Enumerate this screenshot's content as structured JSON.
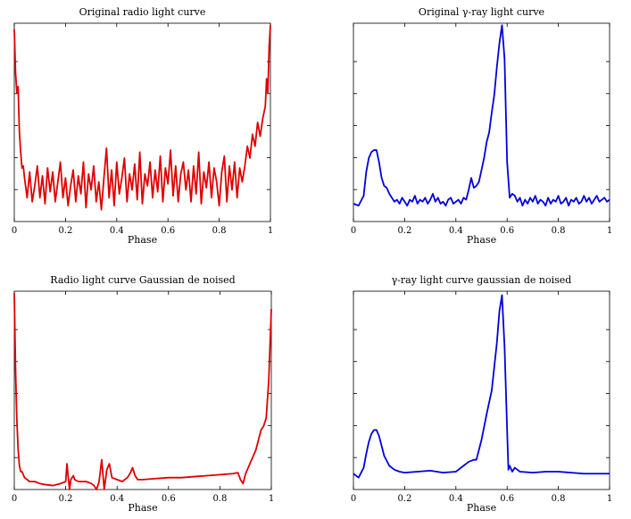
{
  "chart_data": [
    {
      "type": "line",
      "title": "Original radio light curve",
      "xlabel": "Phase",
      "ylabel": "",
      "xlim": [
        0,
        1
      ],
      "ylim": [
        0,
        1
      ],
      "yticks_labeled": false,
      "x_ticks": [
        "0",
        "0.2",
        "0.4",
        "0.6",
        "0.8",
        "1"
      ],
      "color": "#e00000",
      "series": [
        {
          "x": [
            0,
            0.005,
            0.01,
            0.015,
            0.02,
            0.025,
            0.03,
            0.035,
            0.04,
            0.05,
            0.06,
            0.07,
            0.08,
            0.09,
            0.1,
            0.11,
            0.12,
            0.13,
            0.14,
            0.15,
            0.16,
            0.17,
            0.18,
            0.19,
            0.2,
            0.21,
            0.22,
            0.23,
            0.24,
            0.25,
            0.26,
            0.27,
            0.28,
            0.29,
            0.3,
            0.31,
            0.32,
            0.33,
            0.34,
            0.35,
            0.36,
            0.37,
            0.38,
            0.39,
            0.4,
            0.41,
            0.42,
            0.43,
            0.44,
            0.45,
            0.46,
            0.47,
            0.48,
            0.49,
            0.5,
            0.51,
            0.52,
            0.53,
            0.54,
            0.55,
            0.56,
            0.57,
            0.58,
            0.59,
            0.6,
            0.61,
            0.62,
            0.63,
            0.64,
            0.65,
            0.66,
            0.67,
            0.68,
            0.69,
            0.7,
            0.71,
            0.72,
            0.73,
            0.74,
            0.75,
            0.76,
            0.77,
            0.78,
            0.79,
            0.8,
            0.81,
            0.82,
            0.83,
            0.84,
            0.85,
            0.86,
            0.87,
            0.88,
            0.89,
            0.9,
            0.91,
            0.92,
            0.93,
            0.94,
            0.95,
            0.96,
            0.97,
            0.98,
            0.985,
            0.99,
            0.995,
            1
          ],
          "y": [
            0.97,
            0.75,
            0.65,
            0.68,
            0.45,
            0.35,
            0.27,
            0.28,
            0.22,
            0.12,
            0.25,
            0.1,
            0.18,
            0.28,
            0.12,
            0.23,
            0.09,
            0.27,
            0.15,
            0.25,
            0.1,
            0.2,
            0.3,
            0.12,
            0.22,
            0.08,
            0.18,
            0.26,
            0.1,
            0.23,
            0.14,
            0.3,
            0.07,
            0.24,
            0.16,
            0.28,
            0.1,
            0.2,
            0.06,
            0.22,
            0.37,
            0.12,
            0.26,
            0.08,
            0.3,
            0.14,
            0.22,
            0.32,
            0.1,
            0.24,
            0.16,
            0.29,
            0.11,
            0.35,
            0.09,
            0.24,
            0.18,
            0.3,
            0.12,
            0.26,
            0.15,
            0.33,
            0.1,
            0.27,
            0.19,
            0.36,
            0.13,
            0.28,
            0.1,
            0.24,
            0.3,
            0.16,
            0.26,
            0.1,
            0.28,
            0.14,
            0.35,
            0.09,
            0.25,
            0.17,
            0.3,
            0.12,
            0.27,
            0.2,
            0.08,
            0.25,
            0.33,
            0.1,
            0.28,
            0.16,
            0.3,
            0.12,
            0.27,
            0.2,
            0.28,
            0.38,
            0.32,
            0.44,
            0.38,
            0.5,
            0.43,
            0.52,
            0.58,
            0.72,
            0.65,
            0.88,
            0.99
          ]
        }
      ]
    },
    {
      "type": "line",
      "title": "Original γ-ray light curve",
      "xlabel": "Phase",
      "ylabel": "",
      "xlim": [
        0,
        1
      ],
      "ylim": [
        0,
        1
      ],
      "yticks_labeled": false,
      "x_ticks": [
        "0",
        "0.2",
        "0.4",
        "0.6",
        "0.8",
        "1"
      ],
      "color": "#0000dd",
      "series": [
        {
          "x": [
            0,
            0.02,
            0.04,
            0.05,
            0.06,
            0.07,
            0.08,
            0.09,
            0.1,
            0.11,
            0.12,
            0.13,
            0.14,
            0.15,
            0.16,
            0.17,
            0.18,
            0.19,
            0.2,
            0.21,
            0.22,
            0.23,
            0.24,
            0.25,
            0.26,
            0.27,
            0.28,
            0.29,
            0.3,
            0.31,
            0.32,
            0.33,
            0.34,
            0.35,
            0.36,
            0.37,
            0.38,
            0.39,
            0.4,
            0.41,
            0.42,
            0.43,
            0.44,
            0.45,
            0.46,
            0.47,
            0.48,
            0.49,
            0.5,
            0.51,
            0.52,
            0.53,
            0.54,
            0.55,
            0.56,
            0.57,
            0.58,
            0.59,
            0.6,
            0.61,
            0.62,
            0.63,
            0.64,
            0.65,
            0.66,
            0.67,
            0.68,
            0.69,
            0.7,
            0.71,
            0.72,
            0.73,
            0.74,
            0.75,
            0.76,
            0.77,
            0.78,
            0.79,
            0.8,
            0.81,
            0.82,
            0.83,
            0.84,
            0.85,
            0.86,
            0.87,
            0.88,
            0.89,
            0.9,
            0.91,
            0.92,
            0.93,
            0.94,
            0.95,
            0.96,
            0.97,
            0.98,
            0.99,
            1
          ],
          "y": [
            0.09,
            0.08,
            0.13,
            0.25,
            0.32,
            0.35,
            0.36,
            0.36,
            0.3,
            0.22,
            0.18,
            0.17,
            0.14,
            0.12,
            0.1,
            0.11,
            0.09,
            0.12,
            0.1,
            0.08,
            0.11,
            0.1,
            0.13,
            0.09,
            0.11,
            0.1,
            0.12,
            0.09,
            0.11,
            0.14,
            0.1,
            0.12,
            0.09,
            0.1,
            0.08,
            0.11,
            0.12,
            0.09,
            0.1,
            0.11,
            0.09,
            0.12,
            0.11,
            0.16,
            0.22,
            0.17,
            0.18,
            0.2,
            0.26,
            0.32,
            0.4,
            0.45,
            0.55,
            0.64,
            0.78,
            0.9,
            0.99,
            0.82,
            0.3,
            0.12,
            0.14,
            0.13,
            0.1,
            0.12,
            0.08,
            0.11,
            0.09,
            0.12,
            0.1,
            0.13,
            0.09,
            0.11,
            0.1,
            0.08,
            0.12,
            0.09,
            0.11,
            0.1,
            0.13,
            0.09,
            0.1,
            0.12,
            0.08,
            0.11,
            0.1,
            0.12,
            0.09,
            0.1,
            0.13,
            0.1,
            0.12,
            0.09,
            0.11,
            0.13,
            0.1,
            0.11,
            0.12,
            0.1,
            0.11
          ]
        }
      ]
    },
    {
      "type": "line",
      "title": "Radio light curve Gaussian de noised",
      "xlabel": "Phase",
      "ylabel": "",
      "xlim": [
        0,
        1
      ],
      "ylim": [
        0,
        1
      ],
      "yticks_labeled": false,
      "x_ticks": [
        "0",
        "0.2",
        "0.4",
        "0.6",
        "0.8",
        "1"
      ],
      "color": "#e00000",
      "series": [
        {
          "x": [
            0,
            0.005,
            0.01,
            0.015,
            0.02,
            0.025,
            0.03,
            0.04,
            0.05,
            0.06,
            0.08,
            0.1,
            0.12,
            0.15,
            0.18,
            0.2,
            0.205,
            0.21,
            0.215,
            0.22,
            0.23,
            0.235,
            0.25,
            0.28,
            0.3,
            0.31,
            0.32,
            0.33,
            0.34,
            0.35,
            0.36,
            0.37,
            0.38,
            0.4,
            0.42,
            0.44,
            0.45,
            0.46,
            0.47,
            0.48,
            0.5,
            0.55,
            0.6,
            0.65,
            0.7,
            0.75,
            0.8,
            0.85,
            0.87,
            0.88,
            0.89,
            0.9,
            0.92,
            0.94,
            0.95,
            0.96,
            0.97,
            0.98,
            0.99,
            1
          ],
          "y": [
            0.99,
            0.6,
            0.35,
            0.2,
            0.12,
            0.09,
            0.09,
            0.06,
            0.05,
            0.04,
            0.04,
            0.03,
            0.025,
            0.02,
            0.03,
            0.04,
            0.13,
            0.06,
            0.0,
            0.05,
            0.07,
            0.05,
            0.04,
            0.04,
            0.03,
            0.02,
            0.0,
            0.04,
            0.15,
            0.0,
            0.1,
            0.13,
            0.06,
            0.05,
            0.04,
            0.06,
            0.08,
            0.11,
            0.07,
            0.05,
            0.05,
            0.055,
            0.06,
            0.06,
            0.065,
            0.07,
            0.075,
            0.08,
            0.085,
            0.05,
            0.03,
            0.08,
            0.14,
            0.2,
            0.25,
            0.3,
            0.32,
            0.36,
            0.55,
            0.91
          ]
        }
      ]
    },
    {
      "type": "line",
      "title": "γ-ray light curve gaussian de noised",
      "xlabel": "Phase",
      "ylabel": "",
      "xlim": [
        0,
        1
      ],
      "ylim": [
        0,
        1
      ],
      "yticks_labeled": false,
      "x_ticks": [
        "0",
        "0.2",
        "0.4",
        "0.6",
        "0.8",
        "1"
      ],
      "color": "#0000dd",
      "series": [
        {
          "x": [
            0,
            0.02,
            0.04,
            0.05,
            0.06,
            0.07,
            0.08,
            0.09,
            0.1,
            0.11,
            0.12,
            0.14,
            0.16,
            0.18,
            0.2,
            0.25,
            0.3,
            0.35,
            0.4,
            0.43,
            0.45,
            0.47,
            0.48,
            0.5,
            0.52,
            0.54,
            0.56,
            0.57,
            0.58,
            0.59,
            0.6,
            0.605,
            0.61,
            0.62,
            0.63,
            0.64,
            0.65,
            0.7,
            0.75,
            0.8,
            0.85,
            0.9,
            0.95,
            1
          ],
          "y": [
            0.08,
            0.06,
            0.11,
            0.18,
            0.24,
            0.28,
            0.3,
            0.3,
            0.27,
            0.22,
            0.17,
            0.12,
            0.1,
            0.09,
            0.085,
            0.09,
            0.095,
            0.085,
            0.09,
            0.12,
            0.14,
            0.15,
            0.15,
            0.25,
            0.38,
            0.5,
            0.74,
            0.9,
            0.98,
            0.72,
            0.3,
            0.1,
            0.12,
            0.09,
            0.11,
            0.1,
            0.09,
            0.085,
            0.09,
            0.09,
            0.085,
            0.08,
            0.08,
            0.08
          ]
        }
      ]
    }
  ]
}
